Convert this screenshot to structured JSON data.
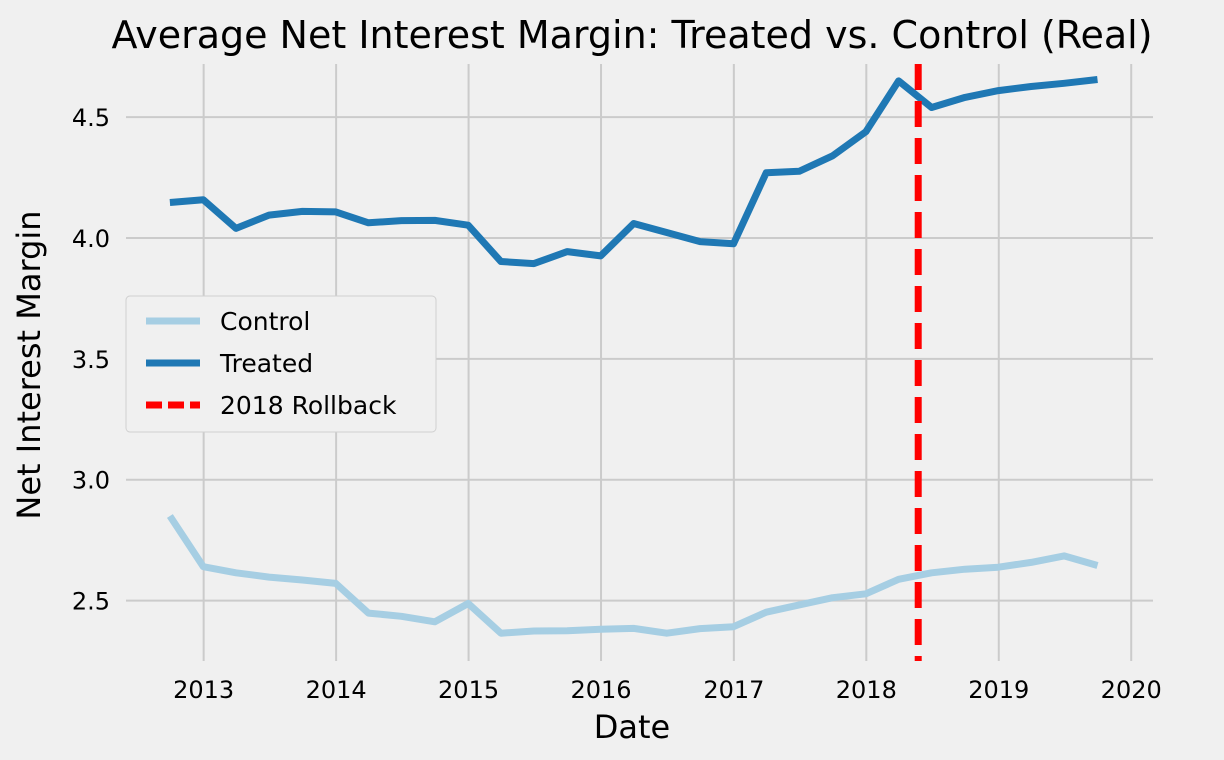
{
  "chart_data": {
    "type": "line",
    "title": "Average Net Interest Margin: Treated vs. Control (Real)",
    "xlabel": "Date",
    "ylabel": "Net Interest Margin",
    "xlim": [
      "2012-06-01",
      "2020-03-01"
    ],
    "ylim": [
      2.25,
      4.72
    ],
    "x_ticks": [
      "2013",
      "2014",
      "2015",
      "2016",
      "2017",
      "2018",
      "2019",
      "2020"
    ],
    "y_ticks": [
      "2.5",
      "3.0",
      "3.5",
      "4.0",
      "4.5"
    ],
    "grid": true,
    "legend_position": "center-left",
    "x": [
      "2012-09-30",
      "2012-12-31",
      "2013-03-31",
      "2013-06-30",
      "2013-09-30",
      "2013-12-31",
      "2014-03-31",
      "2014-06-30",
      "2014-09-30",
      "2014-12-31",
      "2015-03-31",
      "2015-06-30",
      "2015-09-30",
      "2015-12-31",
      "2016-03-31",
      "2016-06-30",
      "2016-09-30",
      "2016-12-31",
      "2017-03-31",
      "2017-06-30",
      "2017-09-30",
      "2017-12-31",
      "2018-03-31",
      "2018-06-30",
      "2018-09-30",
      "2018-12-31",
      "2019-03-31",
      "2019-06-30",
      "2019-09-30"
    ],
    "series": [
      {
        "name": "Control",
        "color": "#a6cee3",
        "values": [
          2.85,
          2.64,
          2.615,
          2.597,
          2.585,
          2.571,
          2.448,
          2.435,
          2.412,
          2.488,
          2.365,
          2.374,
          2.375,
          2.381,
          2.385,
          2.365,
          2.384,
          2.392,
          2.452,
          2.482,
          2.512,
          2.528,
          2.588,
          2.615,
          2.63,
          2.638,
          2.658,
          2.685,
          2.645
        ]
      },
      {
        "name": "Treated",
        "color": "#1f78b4",
        "values": [
          4.147,
          4.158,
          4.04,
          4.095,
          4.11,
          4.108,
          4.063,
          4.072,
          4.073,
          4.053,
          3.903,
          3.894,
          3.944,
          3.926,
          4.06,
          4.023,
          3.985,
          3.976,
          4.27,
          4.276,
          4.34,
          4.44,
          4.65,
          4.54,
          4.582,
          4.61,
          4.627,
          4.64,
          4.656
        ]
      }
    ],
    "vlines": [
      {
        "name": "2018 Rollback",
        "x": "2018-05-24",
        "color": "#ff0000",
        "style": "dashed"
      }
    ]
  }
}
